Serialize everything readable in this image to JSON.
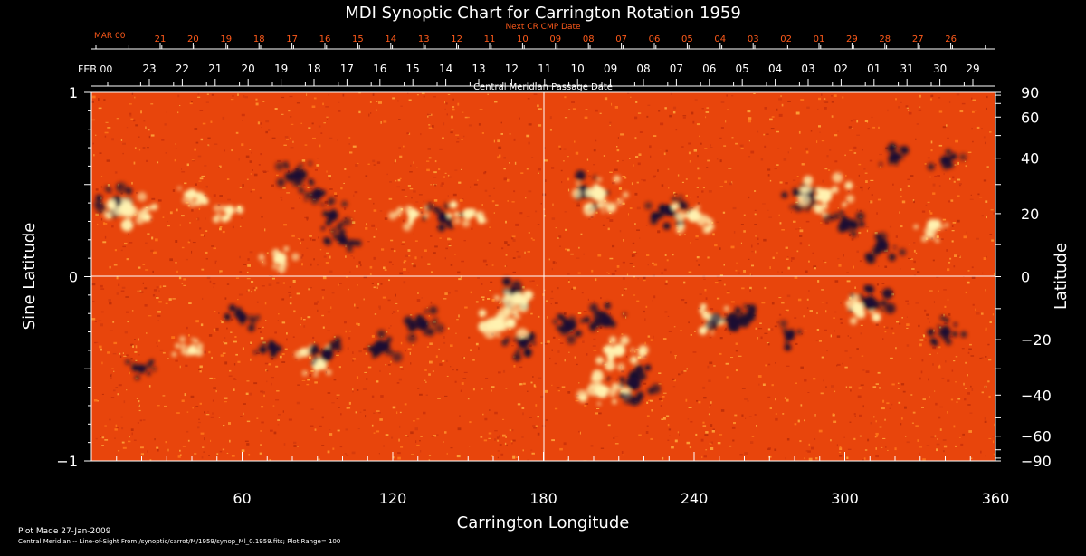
{
  "chart_data": {
    "type": "heatmap",
    "title": "MDI Synoptic Chart for Carrington Rotation 1959",
    "xlabel": "Carrington Longitude",
    "ylabel_left": "Sine Latitude",
    "ylabel_right": "Latitude",
    "xlim": [
      0,
      360
    ],
    "ylim": [
      -1,
      1
    ],
    "x_ticks": [
      60,
      120,
      180,
      240,
      300,
      360
    ],
    "y_ticks_left": [
      {
        "v": 1,
        "label": "1"
      },
      {
        "v": 0,
        "label": "0"
      },
      {
        "v": -1,
        "label": "−1"
      }
    ],
    "y_ticks_right": [
      90,
      60,
      40,
      20,
      0,
      -20,
      -40,
      -60,
      -90
    ],
    "cmp_top_label": "Central Meridian Passage Date",
    "cmp_date_month": "FEB 00",
    "cmp_dates": [
      "23",
      "22",
      "21",
      "20",
      "19",
      "18",
      "17",
      "16",
      "15",
      "14",
      "13",
      "12",
      "11",
      "10",
      "09",
      "08",
      "07",
      "06",
      "05",
      "04",
      "03",
      "02",
      "01",
      "31",
      "30",
      "29"
    ],
    "next_cr_label": "Next CR CMP Date",
    "next_cr_month": "MAR 00",
    "next_cr_dates": [
      "21",
      "20",
      "19",
      "18",
      "17",
      "16",
      "15",
      "14",
      "13",
      "12",
      "11",
      "10",
      "09",
      "08",
      "07",
      "06",
      "05",
      "04",
      "03",
      "02",
      "01",
      "29",
      "28",
      "27",
      "26"
    ],
    "plot_made": "Plot Made 27-Jan-2009",
    "footer": "Central Meridian -- Line-of-Sight From /synoptic/carrot/M/1959/synop_Ml_0.1959.fits; Plot Range=  100",
    "colors": {
      "background": "#000000",
      "field_base": "#e8450c",
      "positive": "#fff2b0",
      "negative": "#1a1030",
      "axis": "#ffffff",
      "next_cr_text": "#ff5a1a"
    },
    "features": [
      {
        "lon": 10,
        "sinlat": 0.4,
        "polarity": "negative",
        "strength": 0.9
      },
      {
        "lon": 14,
        "sinlat": 0.37,
        "polarity": "positive",
        "strength": 1.0
      },
      {
        "lon": 40,
        "sinlat": 0.45,
        "polarity": "positive",
        "strength": 0.5
      },
      {
        "lon": 55,
        "sinlat": 0.36,
        "polarity": "positive",
        "strength": 0.5
      },
      {
        "lon": 82,
        "sinlat": 0.55,
        "polarity": "negative",
        "strength": 0.7
      },
      {
        "lon": 90,
        "sinlat": 0.45,
        "polarity": "negative",
        "strength": 0.6
      },
      {
        "lon": 96,
        "sinlat": 0.33,
        "polarity": "negative",
        "strength": 0.6
      },
      {
        "lon": 100,
        "sinlat": 0.2,
        "polarity": "negative",
        "strength": 0.5
      },
      {
        "lon": 75,
        "sinlat": 0.1,
        "polarity": "positive",
        "strength": 0.6
      },
      {
        "lon": 128,
        "sinlat": 0.34,
        "polarity": "positive",
        "strength": 0.6
      },
      {
        "lon": 140,
        "sinlat": 0.32,
        "polarity": "negative",
        "strength": 0.6
      },
      {
        "lon": 150,
        "sinlat": 0.34,
        "polarity": "positive",
        "strength": 0.6
      },
      {
        "lon": 196,
        "sinlat": 0.46,
        "polarity": "negative",
        "strength": 0.8
      },
      {
        "lon": 202,
        "sinlat": 0.45,
        "polarity": "positive",
        "strength": 1.0
      },
      {
        "lon": 230,
        "sinlat": 0.36,
        "polarity": "negative",
        "strength": 0.7
      },
      {
        "lon": 240,
        "sinlat": 0.33,
        "polarity": "positive",
        "strength": 0.8
      },
      {
        "lon": 285,
        "sinlat": 0.45,
        "polarity": "negative",
        "strength": 0.8
      },
      {
        "lon": 292,
        "sinlat": 0.44,
        "polarity": "positive",
        "strength": 1.0
      },
      {
        "lon": 300,
        "sinlat": 0.28,
        "polarity": "negative",
        "strength": 0.7
      },
      {
        "lon": 315,
        "sinlat": 0.17,
        "polarity": "negative",
        "strength": 0.7
      },
      {
        "lon": 335,
        "sinlat": 0.28,
        "polarity": "positive",
        "strength": 0.7
      },
      {
        "lon": 320,
        "sinlat": 0.65,
        "polarity": "negative",
        "strength": 0.6
      },
      {
        "lon": 340,
        "sinlat": 0.63,
        "polarity": "negative",
        "strength": 0.5
      },
      {
        "lon": 60,
        "sinlat": -0.22,
        "polarity": "negative",
        "strength": 0.5
      },
      {
        "lon": 72,
        "sinlat": -0.38,
        "polarity": "negative",
        "strength": 0.5
      },
      {
        "lon": 90,
        "sinlat": -0.47,
        "polarity": "positive",
        "strength": 0.8
      },
      {
        "lon": 94,
        "sinlat": -0.42,
        "polarity": "negative",
        "strength": 0.7
      },
      {
        "lon": 115,
        "sinlat": -0.38,
        "polarity": "negative",
        "strength": 0.8
      },
      {
        "lon": 132,
        "sinlat": -0.26,
        "polarity": "negative",
        "strength": 0.7
      },
      {
        "lon": 162,
        "sinlat": -0.26,
        "polarity": "positive",
        "strength": 1.0
      },
      {
        "lon": 168,
        "sinlat": -0.1,
        "polarity": "negative",
        "strength": 0.7
      },
      {
        "lon": 172,
        "sinlat": -0.36,
        "polarity": "negative",
        "strength": 0.6
      },
      {
        "lon": 190,
        "sinlat": -0.27,
        "polarity": "negative",
        "strength": 0.7
      },
      {
        "lon": 205,
        "sinlat": -0.24,
        "polarity": "negative",
        "strength": 0.8
      },
      {
        "lon": 210,
        "sinlat": -0.4,
        "polarity": "positive",
        "strength": 0.8
      },
      {
        "lon": 203,
        "sinlat": -0.62,
        "polarity": "positive",
        "strength": 0.9
      },
      {
        "lon": 216,
        "sinlat": -0.58,
        "polarity": "negative",
        "strength": 0.9
      },
      {
        "lon": 248,
        "sinlat": -0.23,
        "polarity": "positive",
        "strength": 0.6
      },
      {
        "lon": 256,
        "sinlat": -0.25,
        "polarity": "negative",
        "strength": 0.9
      },
      {
        "lon": 278,
        "sinlat": -0.32,
        "polarity": "negative",
        "strength": 0.5
      },
      {
        "lon": 305,
        "sinlat": -0.17,
        "polarity": "positive",
        "strength": 0.8
      },
      {
        "lon": 310,
        "sinlat": -0.14,
        "polarity": "negative",
        "strength": 0.8
      },
      {
        "lon": 340,
        "sinlat": -0.3,
        "polarity": "negative",
        "strength": 0.6
      },
      {
        "lon": 170,
        "sinlat": -0.12,
        "polarity": "positive",
        "strength": 0.7
      },
      {
        "lon": 20,
        "sinlat": -0.5,
        "polarity": "negative",
        "strength": 0.4
      },
      {
        "lon": 40,
        "sinlat": -0.4,
        "polarity": "positive",
        "strength": 0.5
      }
    ]
  }
}
